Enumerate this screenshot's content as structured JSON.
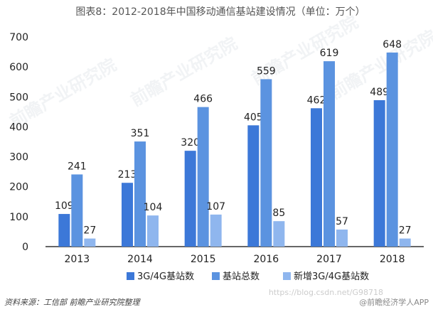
{
  "title": "图表8：2012-2018年中国移动通信基站建设情况（单位：万个）",
  "source": "资料来源：工信部 前瞻产业研究院整理",
  "brand": "@前瞻经济学人APP",
  "watermark_url": "https://blog.csdn.net/G98718",
  "watermark_text": "前瞻产业研究院",
  "colors": {
    "series1": "#3C78D8",
    "series2": "#5B93E0",
    "series3": "#8FB6EE",
    "axis": "#333333"
  },
  "chart_data": {
    "type": "bar",
    "title": "图表8：2012-2018年中国移动通信基站建设情况（单位：万个）",
    "categories": [
      "2013",
      "2014",
      "2015",
      "2016",
      "2017",
      "2018"
    ],
    "series": [
      {
        "name": "3G/4G基站数",
        "values": [
          109,
          213,
          320,
          405,
          462,
          489
        ]
      },
      {
        "name": "基站总数",
        "values": [
          241,
          351,
          466,
          559,
          619,
          648
        ]
      },
      {
        "name": "新增3G/4G基站数",
        "values": [
          27,
          104,
          107,
          85,
          57,
          27
        ]
      }
    ],
    "ylim": [
      0,
      700
    ],
    "yticks": [
      0,
      100,
      200,
      300,
      400,
      500,
      600,
      700
    ],
    "grid": false,
    "legend_position": "bottom"
  }
}
